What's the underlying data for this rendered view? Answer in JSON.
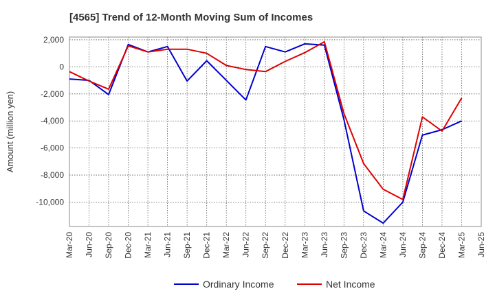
{
  "chart_data": {
    "type": "line",
    "title": "[4565]  Trend of 12-Month Moving Sum of Incomes",
    "xlabel": "",
    "ylabel": "Amount (million yen)",
    "ylim": [
      -11800,
      2200
    ],
    "yticks": [
      2000,
      0,
      -2000,
      -4000,
      -6000,
      -8000,
      -10000
    ],
    "ytick_labels": [
      "2,000",
      "0",
      "-2,000",
      "-4,000",
      "-6,000",
      "-8,000",
      "-10,000"
    ],
    "categories": [
      "Mar-20",
      "Jun-20",
      "Sep-20",
      "Dec-20",
      "Mar-21",
      "Jun-21",
      "Sep-21",
      "Dec-21",
      "Mar-22",
      "Jun-22",
      "Sep-22",
      "Dec-22",
      "Mar-23",
      "Jun-23",
      "Sep-23",
      "Dec-23",
      "Mar-24",
      "Jun-24",
      "Sep-24",
      "Dec-24",
      "Mar-25",
      "Jun-25"
    ],
    "series": [
      {
        "name": "Ordinary Income",
        "color": "#0000cc",
        "values": [
          -900,
          -1000,
          -2050,
          1650,
          1100,
          1500,
          -1050,
          450,
          -1000,
          -2450,
          1500,
          1100,
          1700,
          1600,
          -3900,
          -10650,
          -11550,
          -10000,
          -5050,
          -4650,
          -4000,
          null
        ]
      },
      {
        "name": "Net Income",
        "color": "#dd0000",
        "values": [
          -350,
          -1050,
          -1650,
          1550,
          1100,
          1300,
          1300,
          1000,
          100,
          -200,
          -350,
          400,
          1050,
          1850,
          -3450,
          -7150,
          -9050,
          -9800,
          -3700,
          -4750,
          -2300,
          null
        ]
      }
    ],
    "grid": true,
    "legend_position": "bottom-center"
  }
}
